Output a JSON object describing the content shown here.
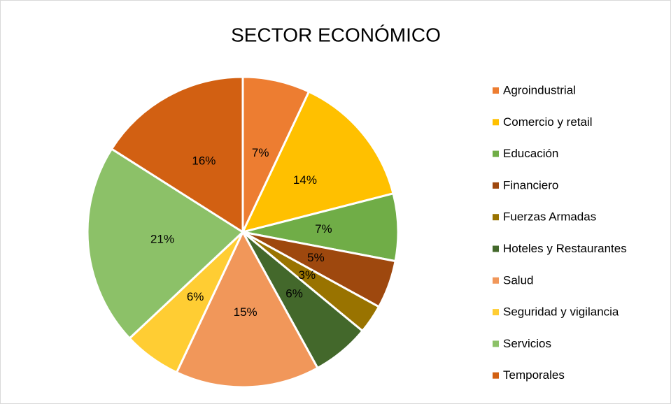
{
  "chart_data": {
    "type": "pie",
    "title": "SECTOR ECONÓMICO",
    "categories": [
      "Agroindustrial",
      "Comercio y retail",
      "Educación",
      "Financiero",
      "Fuerzas Armadas",
      "Hoteles y Restaurantes",
      "Salud",
      "Seguridad y vigilancia",
      "Servicios",
      "Temporales"
    ],
    "values": [
      7,
      14,
      7,
      5,
      3,
      6,
      15,
      6,
      21,
      16
    ],
    "value_labels": [
      "7%",
      "14%",
      "7%",
      "5%",
      "3%",
      "6%",
      "15%",
      "6%",
      "21%",
      "16%"
    ],
    "colors": [
      "#ED7D31",
      "#FFC000",
      "#70AD47",
      "#9E480E",
      "#997300",
      "#43682B",
      "#F1975A",
      "#FFCD33",
      "#8CC168",
      "#D26012"
    ],
    "legend": "right"
  }
}
